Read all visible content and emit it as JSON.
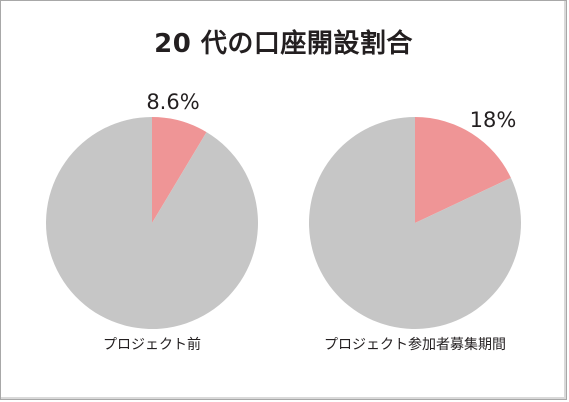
{
  "title": "20 代の口座開設割合",
  "colors": {
    "highlight": "#ef9596",
    "rest": "#c6c6c6",
    "text": "#231f20"
  },
  "chart_data": [
    {
      "type": "pie",
      "label": "プロジェクト前",
      "slices": [
        {
          "value": 8.6,
          "label": "8.6%",
          "color": "#ef9596"
        },
        {
          "value": 91.4,
          "label": "",
          "color": "#c6c6c6"
        }
      ]
    },
    {
      "type": "pie",
      "label": "プロジェクト参加者募集期間",
      "slices": [
        {
          "value": 18,
          "label": "18%",
          "color": "#ef9596"
        },
        {
          "value": 82,
          "label": "",
          "color": "#c6c6c6"
        }
      ]
    }
  ]
}
